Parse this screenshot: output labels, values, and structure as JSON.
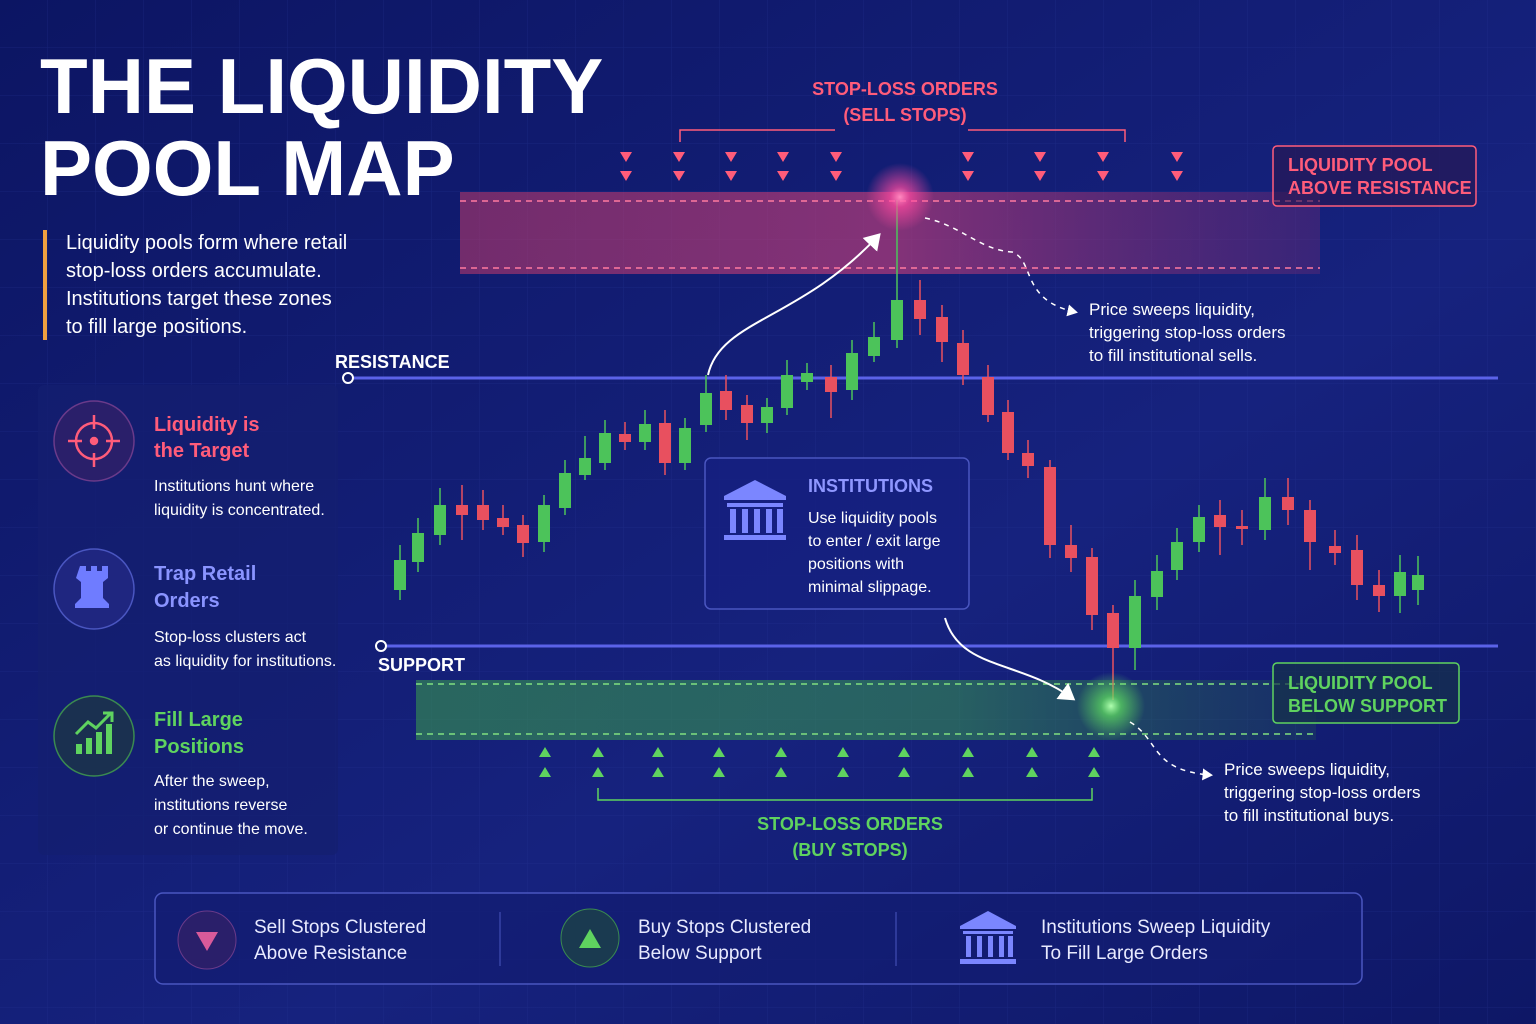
{
  "header": {
    "title_lines": [
      "THE LIQUIDITY",
      "POOL MAP"
    ],
    "intro_lines": [
      "Liquidity pools form where retail",
      "stop-loss orders accumulate.",
      "Institutions target these zones",
      "to fill large positions."
    ]
  },
  "cards": [
    {
      "title_lines": [
        "Liquidity is",
        "the Target"
      ],
      "desc_lines": [
        "Institutions hunt where",
        "liquidity is concentrated."
      ]
    },
    {
      "title_lines": [
        "Trap Retail",
        "Orders"
      ],
      "desc_lines": [
        "Stop-loss clusters act",
        "as liquidity for institutions."
      ]
    },
    {
      "title_lines": [
        "Fill Large",
        "Positions"
      ],
      "desc_lines": [
        "After the sweep,",
        "institutions reverse",
        "or continue the move."
      ]
    }
  ],
  "chart": {
    "resistance_label": "RESISTANCE",
    "support_label": "SUPPORT",
    "sell_stops_lines": [
      "STOP-LOSS ORDERS",
      "(SELL STOPS)"
    ],
    "buy_stops_lines": [
      "STOP-LOSS ORDERS",
      "(BUY STOPS)"
    ],
    "pool_above_lines": [
      "LIQUIDITY POOL",
      "ABOVE RESISTANCE"
    ],
    "pool_below_lines": [
      "LIQUIDITY POOL",
      "BELOW SUPPORT"
    ],
    "sweep_above_lines": [
      "Price sweeps liquidity,",
      "triggering stop-loss orders",
      "to fill institutional sells."
    ],
    "sweep_below_lines": [
      "Price sweeps liquidity,",
      "triggering stop-loss orders",
      "to fill institutional buys."
    ],
    "institutions": {
      "title": "INSTITUTIONS",
      "lines": [
        "Use liquidity pools",
        "to enter / exit large",
        "positions with",
        "minimal slippage."
      ]
    }
  },
  "legend": [
    {
      "lines": [
        "Sell Stops Clustered",
        "Above Resistance"
      ]
    },
    {
      "lines": [
        "Buy Stops Clustered",
        "Below Support"
      ]
    },
    {
      "lines": [
        "Institutions Sweep Liquidity",
        "To Fill Large Orders"
      ]
    }
  ]
}
